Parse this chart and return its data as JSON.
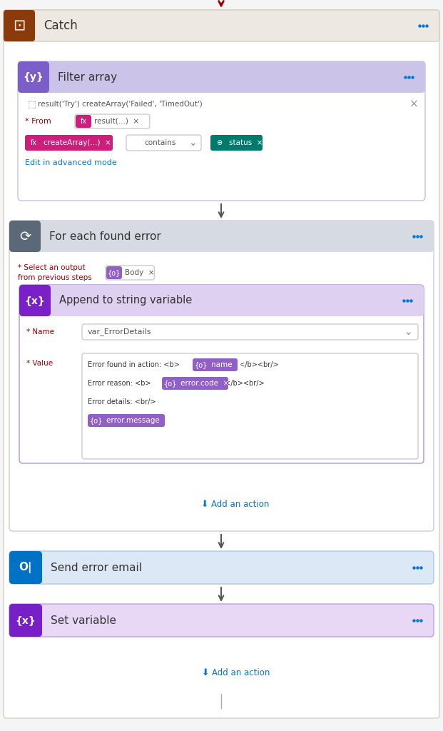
{
  "bg_color": "#f5f5f5",
  "catch_outer_bg": "#ffffff",
  "catch_header_bg": "#ede8e2",
  "catch_header_border": "#d8cfc6",
  "title_icon_bg": "#8B3A0A",
  "title": "Catch",
  "filter_array_block_bg": "#ffffff",
  "filter_array_block_border": "#c8c0e0",
  "filter_array_header_bg": "#ccc4e8",
  "filter_array_icon_bg": "#7B5EC8",
  "filter_array_title": "Filter array",
  "foreach_block_bg": "#ffffff",
  "foreach_block_border": "#c8cdd6",
  "foreach_header_bg": "#d5dae3",
  "foreach_icon_bg": "#5a6878",
  "foreach_title": "For each found error",
  "append_block_bg": "#ffffff",
  "append_block_border": "#b090d8",
  "append_header_bg": "#ddd0f0",
  "append_icon_bg": "#7B20C8",
  "append_title": "Append to string variable",
  "send_email_block_bg": "#dce8f5",
  "send_email_block_border": "#aec8e8",
  "send_email_icon_bg": "#0072C6",
  "send_email_title": "Send error email",
  "set_var_block_bg": "#e8d8f5",
  "set_var_block_border": "#c0a0e0",
  "set_var_icon_bg": "#7820C8",
  "set_var_title": "Set variable",
  "dots_color": "#0078d4",
  "arrow_color": "#555555",
  "red_arrow_color": "#a00000",
  "blue_link_color": "#0078d4",
  "tag_pink_bg": "#CC1F7A",
  "tag_teal_bg": "#007a6c",
  "tag_purple_bg": "#7B20C8",
  "tag_mid_purple_bg": "#9060c8",
  "white": "#ffffff",
  "label_red": "#a00000",
  "text_dark": "#333333",
  "text_mid": "#555555",
  "text_light": "#888888",
  "border_light": "#cccccc"
}
